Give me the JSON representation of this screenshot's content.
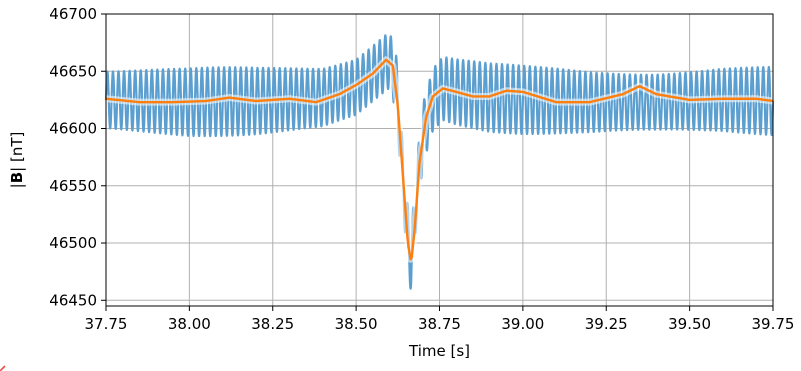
{
  "chart_data": {
    "type": "line",
    "xlabel": "Time [s]",
    "ylabel_prefix": "|",
    "ylabel_bold": "B",
    "ylabel_suffix": "| [nT]",
    "xlim": [
      37.75,
      39.75
    ],
    "ylim": [
      46445,
      46700
    ],
    "xticks": [
      "37.75",
      "38.00",
      "38.25",
      "38.50",
      "38.75",
      "39.00",
      "39.25",
      "39.50",
      "39.75"
    ],
    "yticks": [
      "46450",
      "46500",
      "46550",
      "46600",
      "46650",
      "46700"
    ],
    "grid": true,
    "colors": {
      "raw": "#5b9fd1",
      "filtered": "#ff7f0e",
      "grid": "#b0b0b0"
    },
    "series": [
      {
        "id": "raw",
        "oscillation_hz": 60,
        "oscillation_amplitude_nT": 30,
        "x": [
          37.75,
          38.0,
          38.2,
          38.4,
          38.5,
          38.55,
          38.6,
          38.62,
          38.635,
          38.65,
          38.665,
          38.68,
          38.7,
          38.73,
          38.76,
          38.8,
          38.9,
          39.0,
          39.2,
          39.4,
          39.6,
          39.75
        ],
        "y": [
          46625,
          46623,
          46624,
          46627,
          46636,
          46648,
          46660,
          46640,
          46580,
          46520,
          46480,
          46540,
          46595,
          46625,
          46635,
          46632,
          46627,
          46625,
          46623,
          46623,
          46625,
          46624
        ]
      },
      {
        "id": "filtered",
        "x": [
          37.75,
          37.85,
          37.95,
          38.05,
          38.12,
          38.2,
          38.3,
          38.38,
          38.45,
          38.5,
          38.55,
          38.59,
          38.61,
          38.625,
          38.64,
          38.655,
          38.665,
          38.675,
          38.69,
          38.71,
          38.73,
          38.76,
          38.8,
          38.85,
          38.9,
          38.95,
          39.0,
          39.1,
          39.2,
          39.3,
          39.35,
          39.4,
          39.5,
          39.6,
          39.7,
          39.75
        ],
        "y": [
          46626,
          46623,
          46623,
          46624,
          46627,
          46624,
          46626,
          46623,
          46630,
          46638,
          46648,
          46660,
          46655,
          46620,
          46560,
          46500,
          46483,
          46510,
          46570,
          46610,
          46628,
          46635,
          46632,
          46628,
          46628,
          46633,
          46632,
          46623,
          46623,
          46630,
          46637,
          46630,
          46625,
          46626,
          46626,
          46624
        ]
      }
    ]
  }
}
